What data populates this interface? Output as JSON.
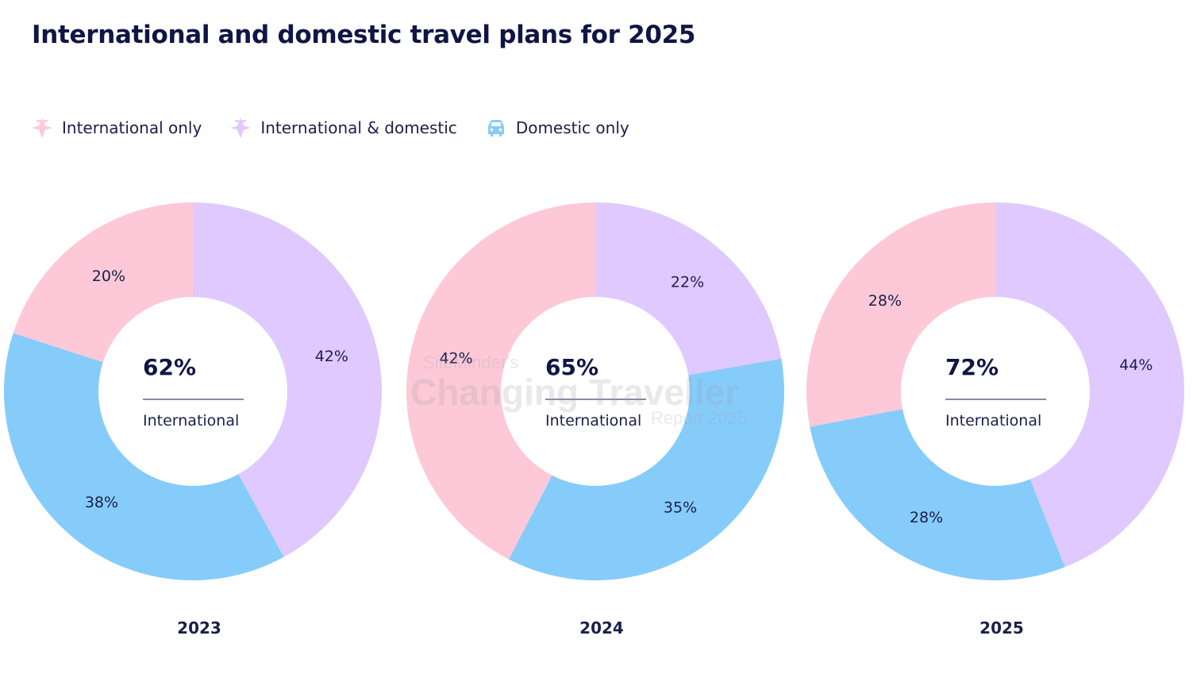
{
  "title": "International and domestic travel plans for 2025",
  "legend": [
    {
      "label": "International only",
      "icon": "plane-icon",
      "color": "#fdc9d8"
    },
    {
      "label": "International & domestic",
      "icon": "plane-icon",
      "color": "#e0c9ff"
    },
    {
      "label": "Domestic only",
      "icon": "car-icon",
      "color": "#86ccfb"
    }
  ],
  "watermark": {
    "line1": "SiteMinder's",
    "line2": "Changing Traveller",
    "line3": "Report 2025"
  },
  "chart_data": [
    {
      "type": "pie",
      "title": "2023",
      "center_value": "62%",
      "center_label": "International",
      "series": [
        {
          "name": "International & domestic",
          "value": 42,
          "label": "42%",
          "color": "#e0c9ff"
        },
        {
          "name": "Domestic only",
          "value": 38,
          "label": "38%",
          "color": "#86ccfb"
        },
        {
          "name": "International only",
          "value": 20,
          "label": "20%",
          "color": "#fdc9d8"
        }
      ]
    },
    {
      "type": "pie",
      "title": "2024",
      "center_value": "65%",
      "center_label": "International",
      "series": [
        {
          "name": "International & domestic",
          "value": 22,
          "label": "22%",
          "color": "#e0c9ff"
        },
        {
          "name": "Domestic only",
          "value": 35,
          "label": "35%",
          "color": "#86ccfb"
        },
        {
          "name": "International only",
          "value": 42,
          "label": "42%",
          "color": "#fdc9d8"
        }
      ]
    },
    {
      "type": "pie",
      "title": "2025",
      "center_value": "72%",
      "center_label": "International",
      "series": [
        {
          "name": "International & domestic",
          "value": 44,
          "label": "44%",
          "color": "#e0c9ff"
        },
        {
          "name": "Domestic only",
          "value": 28,
          "label": "28%",
          "color": "#86ccfb"
        },
        {
          "name": "International only",
          "value": 28,
          "label": "28%",
          "color": "#fdc9d8"
        }
      ]
    }
  ]
}
